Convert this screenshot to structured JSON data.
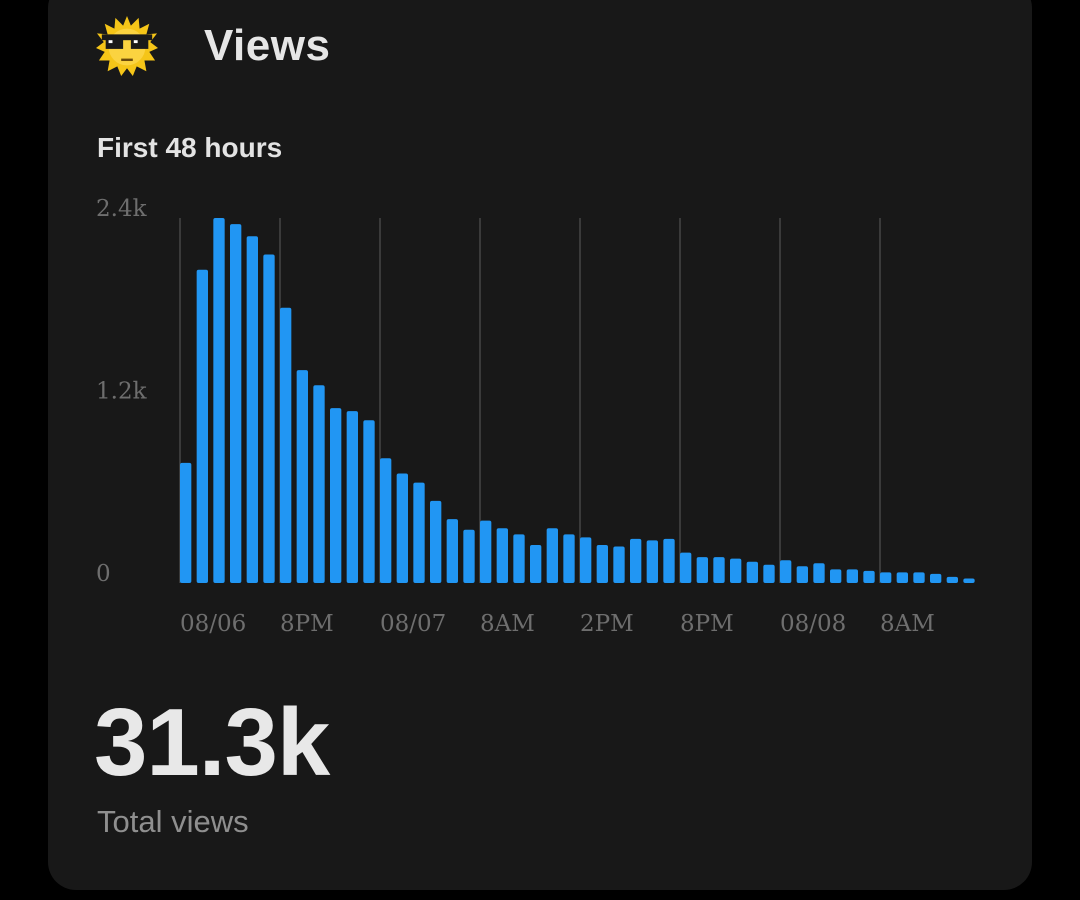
{
  "header": {
    "title": "Views",
    "icon": "sunglasses-sun-icon"
  },
  "chart_data": {
    "type": "bar",
    "title": "First 48 hours",
    "xlabel": "",
    "ylabel": "",
    "ylim": [
      0,
      2400
    ],
    "yticks": [
      "0",
      "1.2k",
      "2.4k"
    ],
    "ytick_values": [
      0,
      1200,
      2400
    ],
    "xticks": [
      "08/06",
      "8PM",
      "08/07",
      "8AM",
      "2PM",
      "8PM",
      "08/08",
      "8AM"
    ],
    "grid": "vertical",
    "color": "#2196f3",
    "values": [
      790,
      2060,
      2400,
      2360,
      2280,
      2160,
      1810,
      1400,
      1300,
      1150,
      1130,
      1070,
      820,
      720,
      660,
      540,
      420,
      350,
      410,
      360,
      320,
      250,
      360,
      320,
      300,
      250,
      240,
      290,
      280,
      290,
      200,
      170,
      170,
      160,
      140,
      120,
      150,
      110,
      130,
      90,
      90,
      80,
      70,
      70,
      70,
      60,
      40,
      30
    ]
  },
  "summary": {
    "total": "31.3k",
    "label": "Total views"
  }
}
